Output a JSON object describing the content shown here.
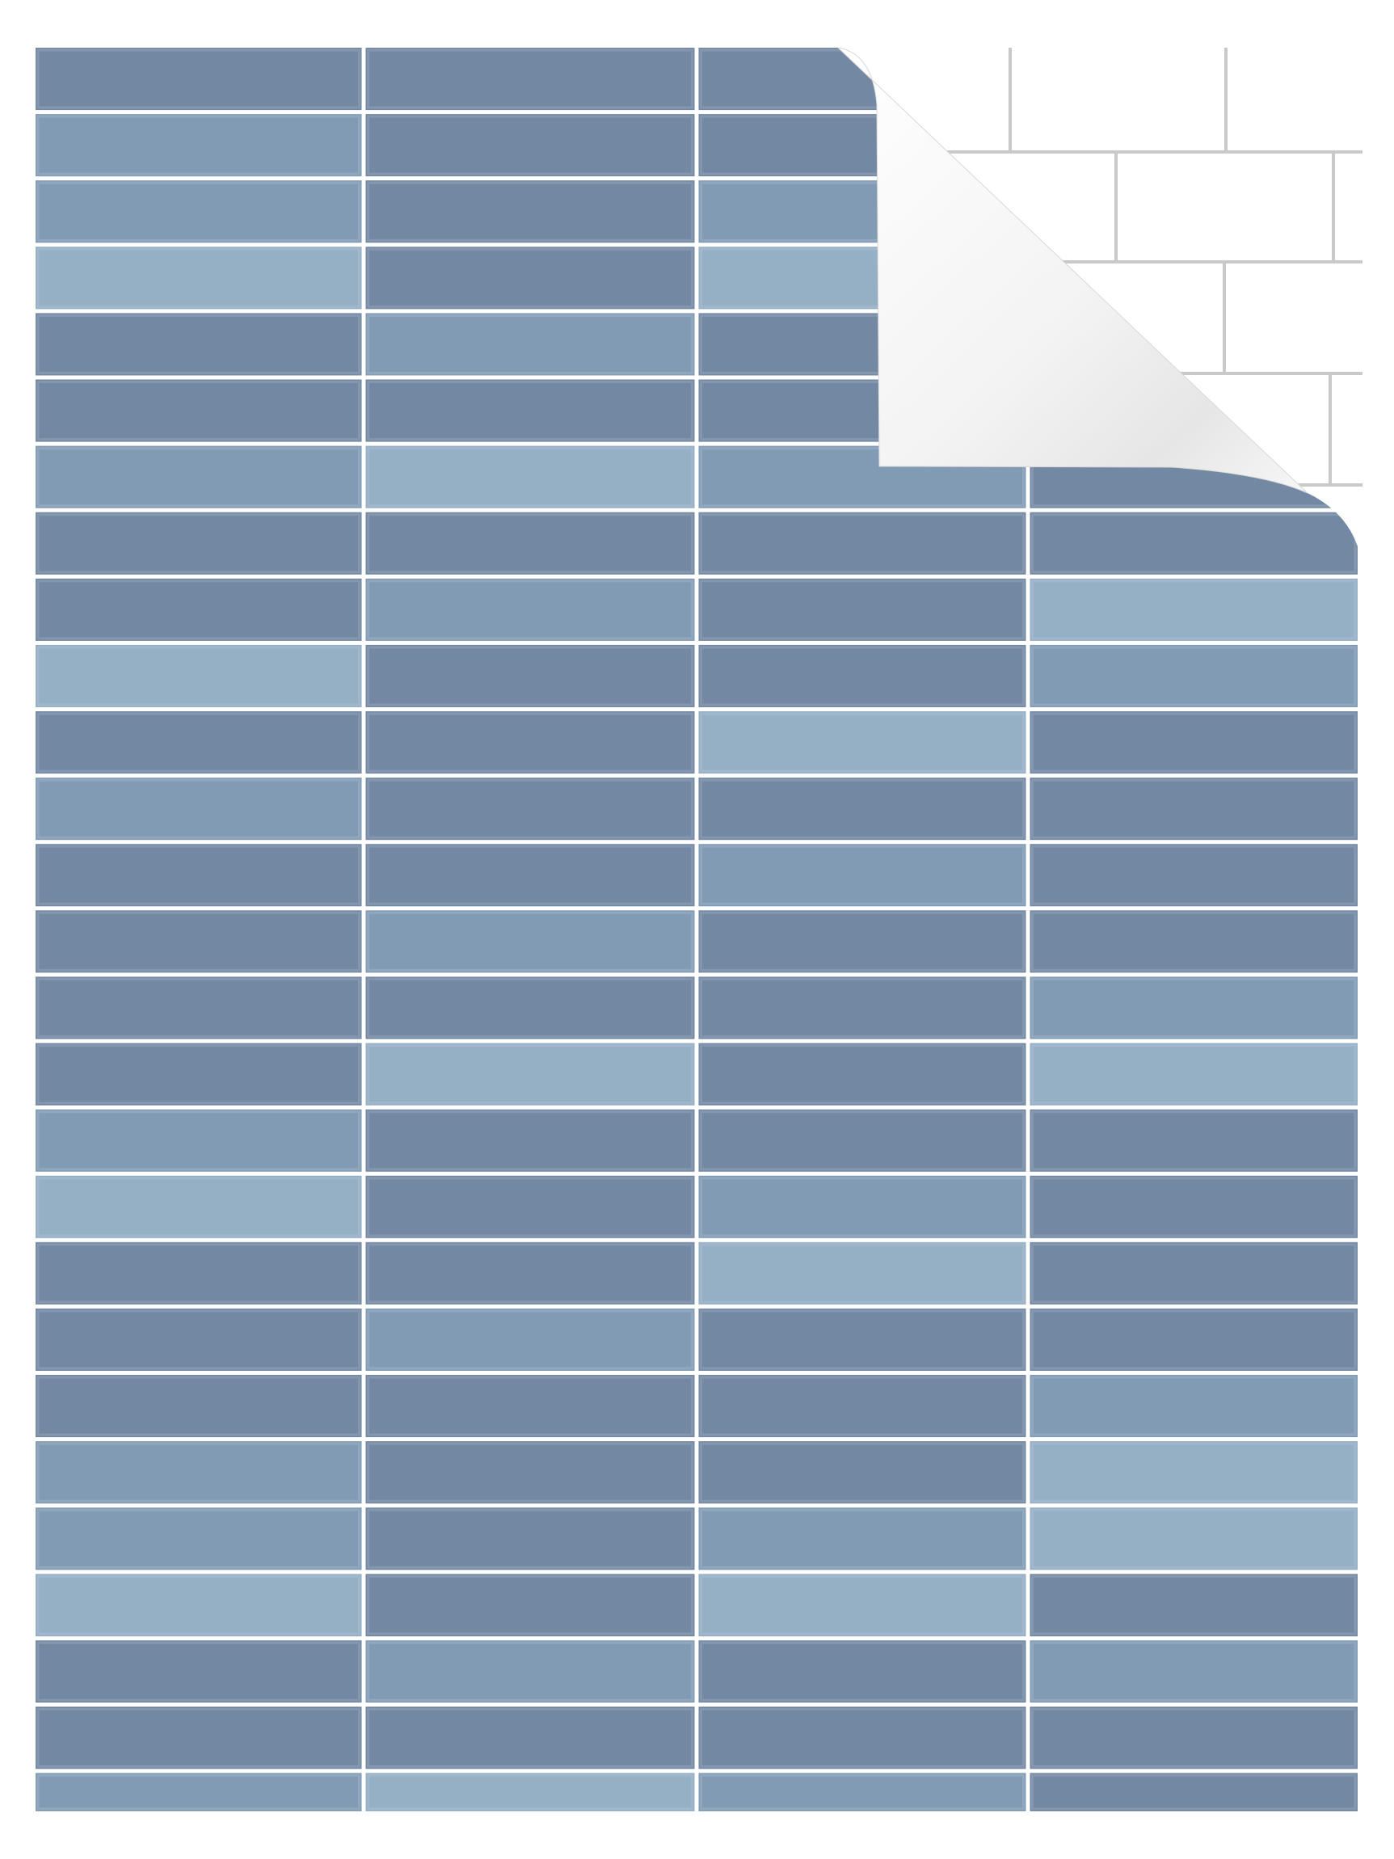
{
  "product": {
    "columns": 4,
    "rows": 27,
    "colors": {
      "grout": "#ffffff",
      "tile_shades": [
        "#7389a3",
        "#829bb5",
        "#95afc5"
      ],
      "backing": "#ffffff",
      "wall_tile": "#ffffff",
      "wall_grout": "#c9c9c9"
    },
    "tile_shade_pattern": [
      [
        0,
        0,
        0,
        0
      ],
      [
        1,
        0,
        0,
        0
      ],
      [
        1,
        0,
        1,
        0
      ],
      [
        2,
        0,
        2,
        0
      ],
      [
        0,
        1,
        0,
        0
      ],
      [
        0,
        0,
        0,
        0
      ],
      [
        1,
        2,
        1,
        0
      ],
      [
        0,
        0,
        0,
        0
      ],
      [
        0,
        1,
        0,
        2
      ],
      [
        2,
        0,
        0,
        1
      ],
      [
        0,
        0,
        2,
        0
      ],
      [
        1,
        0,
        0,
        0
      ],
      [
        0,
        0,
        1,
        0
      ],
      [
        0,
        1,
        0,
        0
      ],
      [
        0,
        0,
        0,
        1
      ],
      [
        0,
        2,
        0,
        2
      ],
      [
        1,
        0,
        0,
        0
      ],
      [
        2,
        0,
        1,
        0
      ],
      [
        0,
        0,
        2,
        0
      ],
      [
        0,
        1,
        0,
        0
      ],
      [
        0,
        0,
        0,
        1
      ],
      [
        1,
        0,
        0,
        2
      ],
      [
        1,
        0,
        1,
        2
      ],
      [
        2,
        0,
        2,
        0
      ],
      [
        0,
        1,
        0,
        1
      ],
      [
        0,
        0,
        0,
        0
      ],
      [
        1,
        2,
        1,
        0
      ]
    ],
    "peeled_corner": "top-right"
  }
}
